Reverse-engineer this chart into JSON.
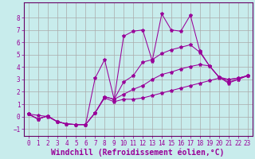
{
  "xlabel": "Windchill (Refroidissement éolien,°C)",
  "bg_color": "#c8ecec",
  "grid_color": "#aaaaaa",
  "line_color": "#990099",
  "spine_color": "#660066",
  "xlim": [
    -0.5,
    23.5
  ],
  "ylim": [
    -1.6,
    9.2
  ],
  "xticks": [
    0,
    1,
    2,
    3,
    4,
    5,
    6,
    7,
    8,
    9,
    10,
    11,
    12,
    13,
    14,
    15,
    16,
    17,
    18,
    19,
    20,
    21,
    22,
    23
  ],
  "yticks": [
    -1,
    0,
    1,
    2,
    3,
    4,
    5,
    6,
    7,
    8
  ],
  "series": [
    [
      0.2,
      0.1,
      0.0,
      -0.4,
      -0.6,
      -0.65,
      -0.65,
      0.3,
      1.5,
      1.2,
      1.4,
      1.4,
      1.5,
      1.7,
      1.9,
      2.1,
      2.3,
      2.5,
      2.7,
      2.9,
      3.1,
      3.0,
      3.1,
      3.3
    ],
    [
      0.2,
      -0.2,
      0.05,
      -0.4,
      -0.6,
      -0.65,
      -0.65,
      3.1,
      4.6,
      1.4,
      6.5,
      6.9,
      7.0,
      4.5,
      8.3,
      7.0,
      6.9,
      8.2,
      5.3,
      4.1,
      3.2,
      2.7,
      3.0,
      3.3
    ],
    [
      0.2,
      -0.2,
      0.05,
      -0.4,
      -0.6,
      -0.65,
      -0.65,
      0.3,
      1.6,
      1.4,
      2.8,
      3.3,
      4.4,
      4.6,
      5.1,
      5.4,
      5.6,
      5.8,
      5.2,
      4.1,
      3.2,
      2.8,
      3.0,
      3.3
    ],
    [
      0.2,
      -0.2,
      0.05,
      -0.4,
      -0.6,
      -0.65,
      -0.65,
      0.3,
      1.6,
      1.4,
      1.8,
      2.2,
      2.5,
      3.0,
      3.4,
      3.6,
      3.85,
      4.05,
      4.2,
      4.1,
      3.2,
      3.0,
      3.1,
      3.3
    ]
  ],
  "font_family": "monospace",
  "tick_fontsize": 5.5,
  "xlabel_fontsize": 7.0
}
